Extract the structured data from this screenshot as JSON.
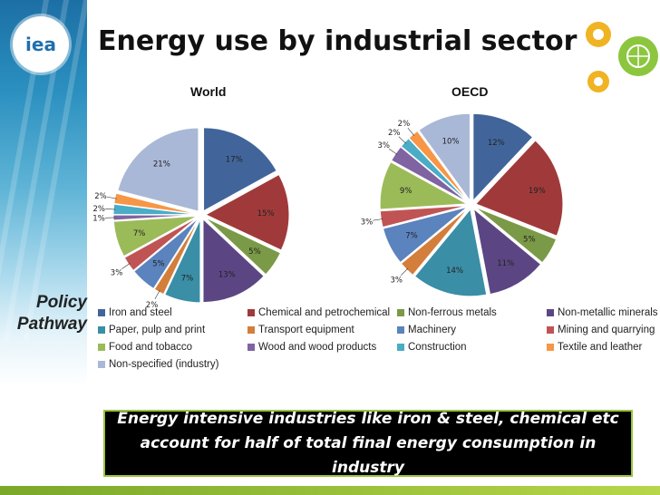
{
  "slide": {
    "title": "Energy use by industrial sector",
    "logo_text": "iea",
    "side_label": [
      "Policy",
      "Pathway"
    ],
    "callout": [
      "Energy intensive industries like iron & steel, chemical etc",
      "account for half of total final energy consumption in industry"
    ]
  },
  "colors": {
    "Iron and steel": "#41659a",
    "Chemical and petrochemical": "#a03a3a",
    "Non-ferrous metals": "#7a9a47",
    "Non-metallic minerals": "#5b4683",
    "Paper, pulp and print": "#3a8ea6",
    "Transport equipment": "#d37e3a",
    "Machinery": "#5b83bd",
    "Mining and quarrying": "#c05454",
    "Food and tobacco": "#9bbb59",
    "Wood and wood products": "#8063a1",
    "Construction": "#4bacc6",
    "Textile and leather": "#f79646",
    "Non-specified (industry)": "#a9b8d6"
  },
  "chart_data": [
    {
      "type": "pie",
      "title": "World",
      "categories": [
        "Iron and steel",
        "Chemical and petrochemical",
        "Non-ferrous metals",
        "Non-metallic minerals",
        "Paper, pulp and print",
        "Transport equipment",
        "Machinery",
        "Mining and quarrying",
        "Food and tobacco",
        "Wood and wood products",
        "Construction",
        "Textile and leather",
        "Non-specified (industry)"
      ],
      "values": [
        17,
        15,
        5,
        13,
        7,
        2,
        5,
        3,
        7,
        1,
        2,
        2,
        21
      ],
      "labels": [
        "17%",
        "15%",
        "5%",
        "13%",
        "7%",
        "2%",
        "5%",
        "3%",
        "7%",
        "1%",
        "2%",
        "2%",
        "21%"
      ]
    },
    {
      "type": "pie",
      "title": "OECD",
      "categories": [
        "Iron and steel",
        "Chemical and petrochemical",
        "Non-ferrous metals",
        "Non-metallic minerals",
        "Paper, pulp and print",
        "Transport equipment",
        "Machinery",
        "Mining and quarrying",
        "Food and tobacco",
        "Wood and wood products",
        "Construction",
        "Textile and leather",
        "Non-specified (industry)"
      ],
      "values": [
        12,
        19,
        5,
        11,
        14,
        3,
        7,
        3,
        9,
        3,
        2,
        2,
        10
      ],
      "labels": [
        "12%",
        "19%",
        "5%",
        "11%",
        "14%",
        "3%",
        "7%",
        "3%",
        "9%",
        "3%",
        "2%",
        "2%",
        "10%"
      ]
    }
  ],
  "legend": [
    "Iron and steel",
    "Chemical and petrochemical",
    "Non-ferrous metals",
    "Non-metallic minerals",
    "Paper, pulp and print",
    "Transport equipment",
    "Machinery",
    "Mining and quarrying",
    "Food and tobacco",
    "Wood and wood products",
    "Construction",
    "Textile and leather",
    "Non-specified (industry)"
  ]
}
